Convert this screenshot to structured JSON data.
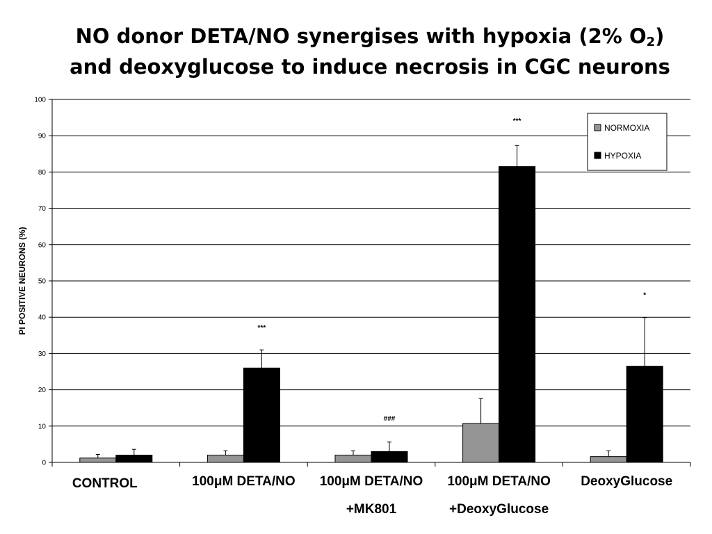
{
  "title": {
    "line1_pre": "NO donor DETA/NO synergises with hypoxia (2% O",
    "line1_sub": "2",
    "line1_post": ")",
    "line2": "and deoxyglucose to induce necrosis in CGC neurons"
  },
  "chart_data": {
    "type": "bar",
    "ylabel": "PI POSITIVE NEURONS (%)",
    "xlabel": "",
    "ylim": [
      0,
      100
    ],
    "yticks": [
      0,
      10,
      20,
      30,
      40,
      50,
      60,
      70,
      80,
      90,
      100
    ],
    "grid": true,
    "legend_position": "top-right",
    "categories": [
      {
        "lines": [
          "CONTROL"
        ]
      },
      {
        "lines": [
          "100μM DETA/NO"
        ]
      },
      {
        "lines": [
          "100μM DETA/NO",
          "+MK801"
        ]
      },
      {
        "lines": [
          "100μM DETA/NO",
          "+DeoxyGlucose"
        ]
      },
      {
        "lines": [
          "DeoxyGlucose"
        ]
      }
    ],
    "series": [
      {
        "name": "NORMOXIA",
        "color": "#959595",
        "values": [
          1.2,
          2.0,
          2.0,
          10.7,
          1.6
        ],
        "errors": [
          1.0,
          1.2,
          1.2,
          6.9,
          1.6
        ]
      },
      {
        "name": "HYPOXIA",
        "color": "#000000",
        "values": [
          2.0,
          26.0,
          3.0,
          81.5,
          26.5
        ],
        "errors": [
          1.6,
          5.0,
          2.6,
          5.8,
          13.4
        ]
      }
    ],
    "annotations": [
      {
        "category": 1,
        "series": 1,
        "text": "***",
        "y": 36.5
      },
      {
        "category": 2,
        "series": 1,
        "text": "###",
        "y": 11.5
      },
      {
        "category": 3,
        "series": 1,
        "text": "***",
        "y": 93.5
      },
      {
        "category": 4,
        "series": 1,
        "text": "*",
        "y": 45.5
      }
    ]
  }
}
